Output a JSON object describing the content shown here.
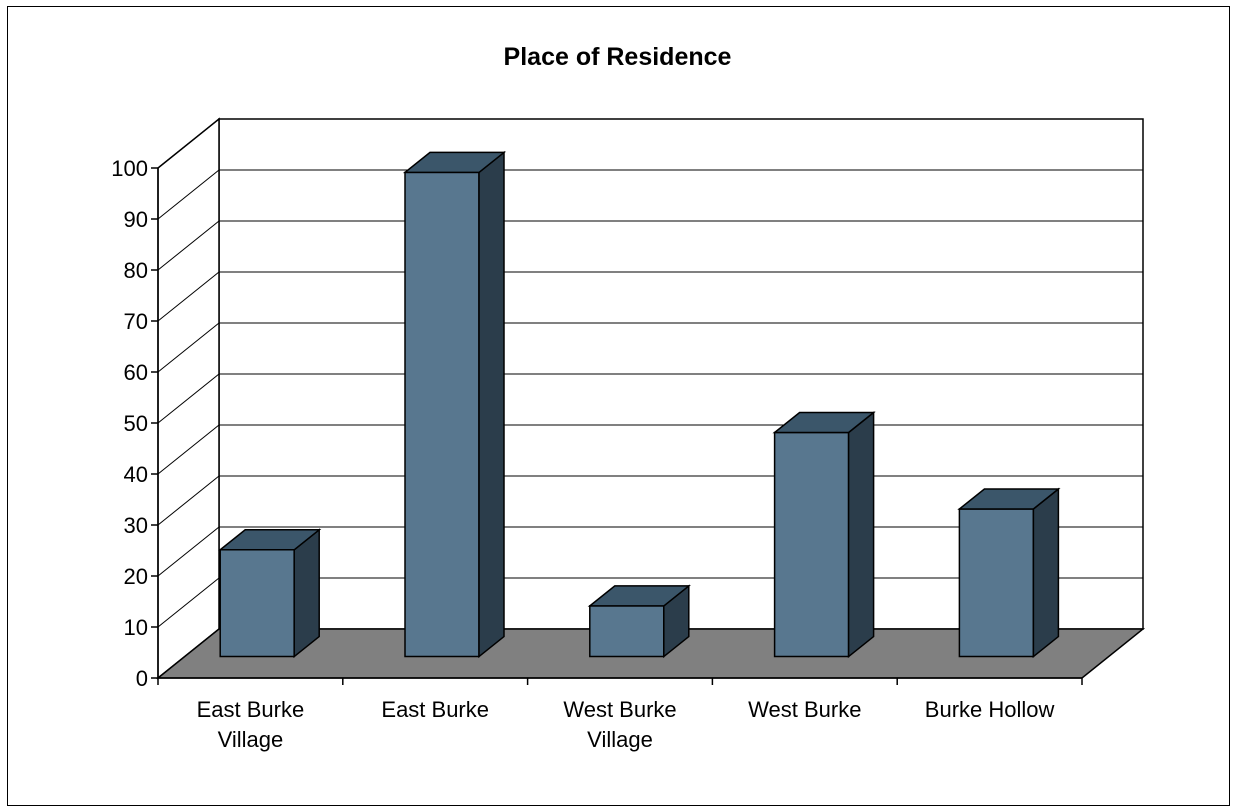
{
  "chart_data": {
    "type": "bar",
    "title": "Place of Residence",
    "xlabel": "",
    "ylabel": "",
    "ylim": [
      0,
      100
    ],
    "y_ticks": [
      "0",
      "10",
      "20",
      "30",
      "40",
      "50",
      "60",
      "70",
      "80",
      "90",
      "100"
    ],
    "categories": [
      [
        "East Burke",
        "Village"
      ],
      [
        "East Burke"
      ],
      [
        "West Burke",
        "Village"
      ],
      [
        "West Burke"
      ],
      [
        "Burke Hollow"
      ]
    ],
    "values": [
      22,
      96,
      11,
      45,
      30
    ],
    "grid": true,
    "legend": "none",
    "colors": {
      "bar_front": "#58778f",
      "bar_top": "#3b566a",
      "bar_side": "#2b3d4b",
      "floor": "#808080",
      "walls": "#ffffff",
      "axis": "#000000"
    }
  }
}
